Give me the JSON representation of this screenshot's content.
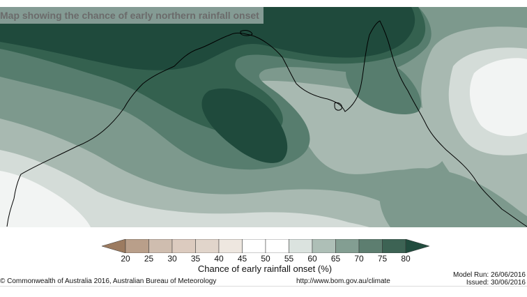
{
  "title": "Map showing the chance of early northern rainfall onset",
  "map": {
    "region": "Northern Australia",
    "palette": {
      "80": "#1f4a3c",
      "75": "#34614f",
      "70": "#577d6e",
      "65": "#7d998d",
      "60": "#a8b9b1",
      "55": "#d4dcd8",
      "50": "#f2f4f3",
      "background": "#ffffff",
      "coast": "#000000"
    }
  },
  "legend": {
    "ticks": [
      "20",
      "25",
      "30",
      "35",
      "40",
      "45",
      "50",
      "55",
      "60",
      "65",
      "70",
      "75",
      "80"
    ],
    "colors": [
      "#9c7b60",
      "#b99f8a",
      "#cfbdaf",
      "#e1d5cb",
      "#eee7e0",
      "#ffffff",
      "#ffffff",
      "#dbe3df",
      "#aebfb7",
      "#839e92",
      "#5d7e70",
      "#3d6354",
      "#214c3e"
    ],
    "title": "Chance of early rainfall onset (%)"
  },
  "footer": {
    "copyright": "© Commonwealth of Australia 2016, Australian Bureau of Meteorology",
    "url": "http://www.bom.gov.au/climate",
    "model_run": "Model Run: 26/06/2016",
    "issued": "Issued: 30/06/2016"
  }
}
